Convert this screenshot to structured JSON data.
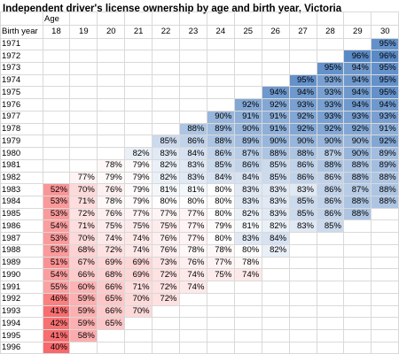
{
  "title": "Independent driver's license ownership by age and birth year, Victoria",
  "chart_data": {
    "type": "table",
    "title": "Independent driver's license ownership by age and birth year, Victoria",
    "column_title": "Age",
    "row_title": "Birth year",
    "ages": [
      "18",
      "19",
      "20",
      "21",
      "22",
      "23",
      "24",
      "25",
      "26",
      "27",
      "28",
      "29",
      "30"
    ],
    "birth_years": [
      "1971",
      "1972",
      "1973",
      "1974",
      "1975",
      "1976",
      "1977",
      "1978",
      "1979",
      "1980",
      "1981",
      "1982",
      "1983",
      "1984",
      "1985",
      "1986",
      "1987",
      "1988",
      "1989",
      "1990",
      "1991",
      "1992",
      "1993",
      "1994",
      "1995",
      "1996"
    ],
    "values": [
      [
        null,
        null,
        null,
        null,
        null,
        null,
        null,
        null,
        null,
        null,
        null,
        null,
        95
      ],
      [
        null,
        null,
        null,
        null,
        null,
        null,
        null,
        null,
        null,
        null,
        null,
        96,
        96
      ],
      [
        null,
        null,
        null,
        null,
        null,
        null,
        null,
        null,
        null,
        null,
        95,
        94,
        95
      ],
      [
        null,
        null,
        null,
        null,
        null,
        null,
        null,
        null,
        null,
        95,
        93,
        94,
        95
      ],
      [
        null,
        null,
        null,
        null,
        null,
        null,
        null,
        null,
        94,
        94,
        93,
        94,
        95
      ],
      [
        null,
        null,
        null,
        null,
        null,
        null,
        null,
        92,
        92,
        93,
        93,
        94,
        94
      ],
      [
        null,
        null,
        null,
        null,
        null,
        null,
        90,
        91,
        91,
        92,
        93,
        93,
        93
      ],
      [
        null,
        null,
        null,
        null,
        null,
        88,
        89,
        90,
        91,
        92,
        92,
        92,
        91
      ],
      [
        null,
        null,
        null,
        null,
        85,
        86,
        88,
        89,
        90,
        90,
        90,
        90,
        92
      ],
      [
        null,
        null,
        null,
        82,
        83,
        84,
        86,
        87,
        88,
        88,
        87,
        90,
        89
      ],
      [
        null,
        null,
        78,
        79,
        82,
        83,
        85,
        86,
        85,
        86,
        88,
        88,
        89
      ],
      [
        null,
        77,
        79,
        79,
        82,
        83,
        84,
        84,
        85,
        86,
        86,
        88,
        88
      ],
      [
        52,
        70,
        76,
        79,
        81,
        81,
        80,
        83,
        83,
        83,
        86,
        87,
        88
      ],
      [
        53,
        71,
        78,
        79,
        80,
        80,
        80,
        83,
        83,
        85,
        86,
        88,
        88
      ],
      [
        53,
        72,
        76,
        77,
        77,
        77,
        80,
        82,
        83,
        85,
        86,
        88,
        null
      ],
      [
        54,
        71,
        75,
        75,
        75,
        77,
        79,
        81,
        82,
        83,
        85,
        null,
        null
      ],
      [
        53,
        70,
        74,
        74,
        76,
        77,
        80,
        83,
        84,
        null,
        null,
        null,
        null
      ],
      [
        53,
        68,
        72,
        74,
        76,
        78,
        78,
        80,
        82,
        null,
        null,
        null,
        null
      ],
      [
        51,
        67,
        69,
        69,
        73,
        76,
        77,
        78,
        null,
        null,
        null,
        null,
        null
      ],
      [
        54,
        66,
        68,
        69,
        72,
        74,
        75,
        74,
        null,
        null,
        null,
        null,
        null
      ],
      [
        55,
        60,
        66,
        71,
        72,
        74,
        null,
        null,
        null,
        null,
        null,
        null,
        null
      ],
      [
        46,
        59,
        65,
        70,
        72,
        null,
        null,
        null,
        null,
        null,
        null,
        null,
        null
      ],
      [
        41,
        59,
        66,
        70,
        null,
        null,
        null,
        null,
        null,
        null,
        null,
        null,
        null
      ],
      [
        42,
        59,
        65,
        null,
        null,
        null,
        null,
        null,
        null,
        null,
        null,
        null,
        null
      ],
      [
        41,
        58,
        null,
        null,
        null,
        null,
        null,
        null,
        null,
        null,
        null,
        null,
        null
      ],
      [
        40,
        null,
        null,
        null,
        null,
        null,
        null,
        null,
        null,
        null,
        null,
        null,
        null
      ]
    ],
    "value_suffix": "%",
    "color_scale": {
      "low": "#f8696b",
      "mid": "#ffffff",
      "high": "#5a8ac6",
      "min": 40,
      "mid_value": 80,
      "max": 96
    }
  }
}
